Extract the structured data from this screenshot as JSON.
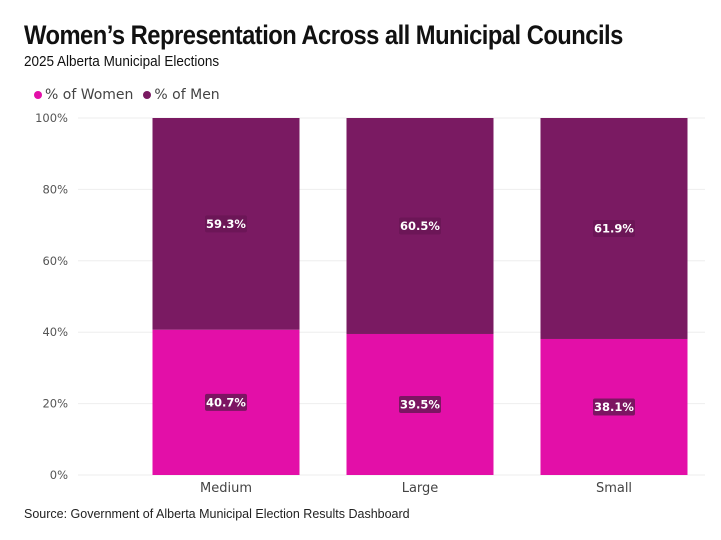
{
  "header": {
    "title": "Women’s Representation Across all Municipal Councils",
    "subtitle": "2025 Alberta Municipal Elections"
  },
  "source": "Source: Government of Alberta Municipal Election Results Dashboard",
  "colors": {
    "women": "#e30fa8",
    "men": "#7a1a62",
    "label_bg": "#6a1656"
  },
  "chart_data": {
    "type": "bar",
    "stacked": true,
    "title": "Women’s Representation Across all Municipal Councils",
    "subtitle": "2025 Alberta Municipal Elections",
    "categories": [
      "Medium",
      "Large",
      "Small"
    ],
    "series": [
      {
        "name": "% of Women",
        "values": [
          40.7,
          39.5,
          38.1
        ],
        "labels": [
          "40.7%",
          "39.5%",
          "38.1%"
        ]
      },
      {
        "name": "% of Men",
        "values": [
          59.3,
          60.5,
          61.9
        ],
        "labels": [
          "59.3%",
          "60.5%",
          "61.9%"
        ]
      }
    ],
    "yticks": [
      "0%",
      "20%",
      "40%",
      "60%",
      "80%",
      "100%"
    ],
    "ylim": [
      0,
      100
    ],
    "legend": "top-left",
    "grid": true
  }
}
